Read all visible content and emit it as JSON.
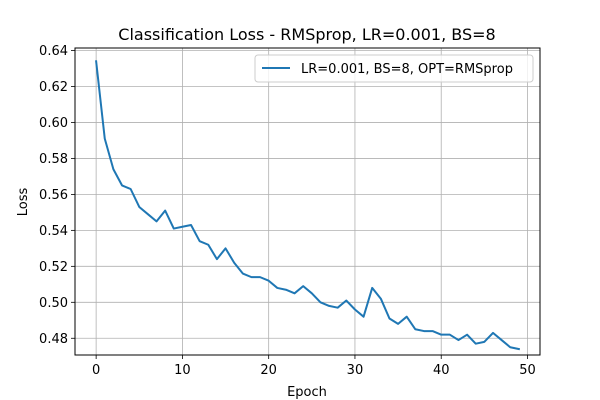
{
  "chart_data": {
    "type": "line",
    "title": "Classification Loss - RMSprop, LR=0.001, BS=8",
    "xlabel": "Epoch",
    "ylabel": "Loss",
    "xlim": [
      -2.45,
      51.45
    ],
    "ylim": [
      0.4707,
      0.6414
    ],
    "xticks": [
      0,
      10,
      20,
      30,
      40,
      50
    ],
    "xtick_labels": [
      "0",
      "10",
      "20",
      "30",
      "40",
      "50"
    ],
    "yticks": [
      0.48,
      0.5,
      0.52,
      0.54,
      0.56,
      0.58,
      0.6,
      0.62,
      0.64
    ],
    "ytick_labels": [
      "0.48",
      "0.50",
      "0.52",
      "0.54",
      "0.56",
      "0.58",
      "0.60",
      "0.62",
      "0.64"
    ],
    "grid": true,
    "legend_position": "top-right",
    "series": [
      {
        "name": "LR=0.001, BS=8, OPT=RMSprop",
        "color": "#1f77b4",
        "x": [
          0,
          1,
          2,
          3,
          4,
          5,
          6,
          7,
          8,
          9,
          10,
          11,
          12,
          13,
          14,
          15,
          16,
          17,
          18,
          19,
          20,
          21,
          22,
          23,
          24,
          25,
          26,
          27,
          28,
          29,
          30,
          31,
          32,
          33,
          34,
          35,
          36,
          37,
          38,
          39,
          40,
          41,
          42,
          43,
          44,
          45,
          46,
          47,
          48,
          49
        ],
        "y": [
          0.634,
          0.591,
          0.574,
          0.565,
          0.563,
          0.553,
          0.549,
          0.545,
          0.551,
          0.541,
          0.542,
          0.543,
          0.534,
          0.532,
          0.524,
          0.53,
          0.522,
          0.516,
          0.514,
          0.514,
          0.512,
          0.508,
          0.507,
          0.505,
          0.509,
          0.505,
          0.5,
          0.498,
          0.497,
          0.501,
          0.496,
          0.492,
          0.508,
          0.502,
          0.491,
          0.488,
          0.492,
          0.485,
          0.484,
          0.484,
          0.482,
          0.482,
          0.479,
          0.482,
          0.477,
          0.478,
          0.483,
          0.479,
          0.475,
          0.474
        ]
      }
    ]
  }
}
